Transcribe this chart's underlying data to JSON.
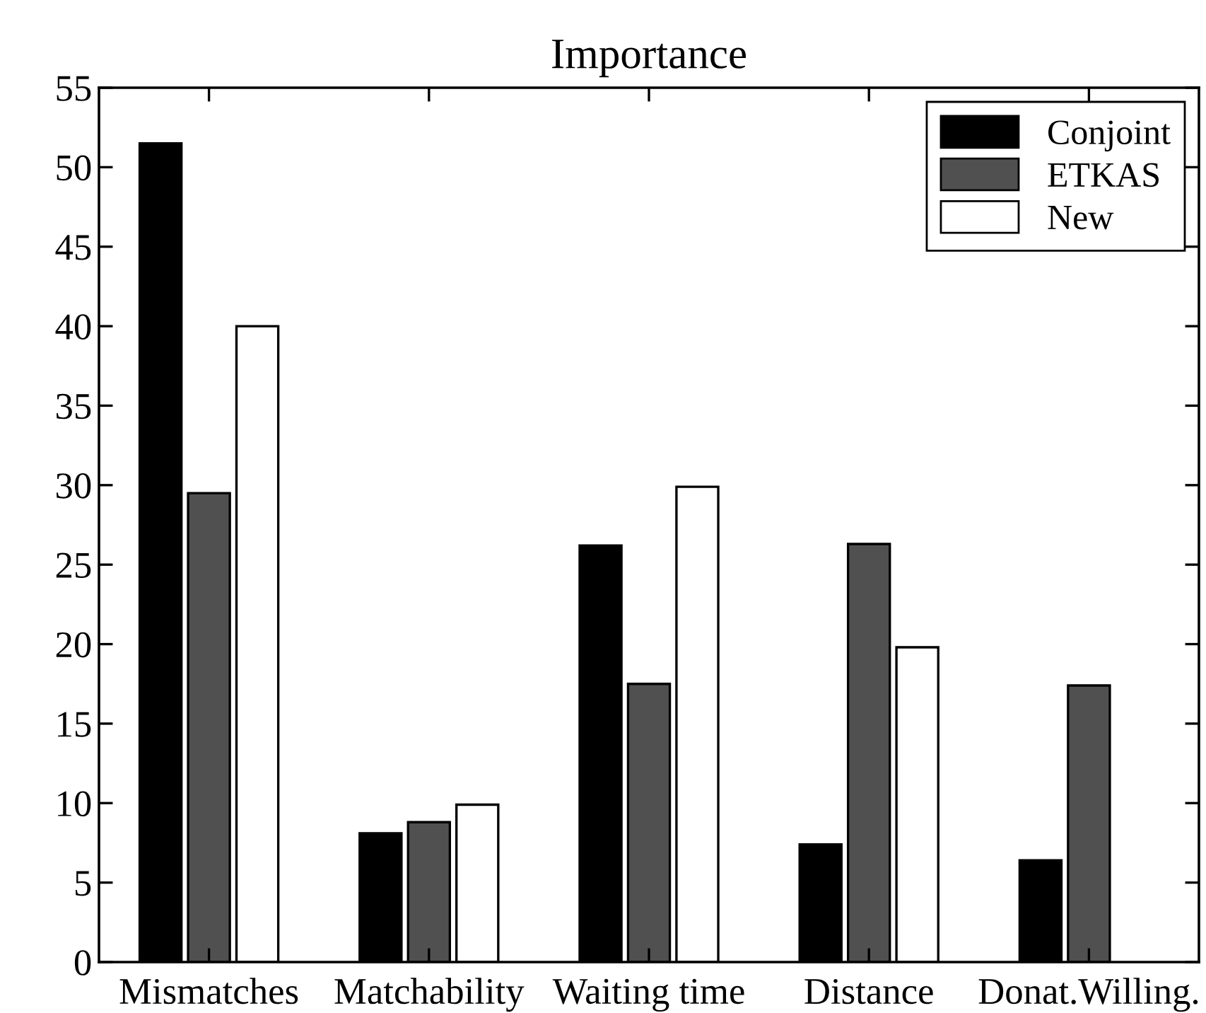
{
  "chart_data": {
    "type": "bar",
    "title": "Importance",
    "categories": [
      "Mismatches",
      "Matchability",
      "Waiting time",
      "Distance",
      "Donat.Willing."
    ],
    "series": [
      {
        "name": "Conjoint",
        "color": "#000000",
        "values": [
          51.5,
          8.1,
          26.2,
          7.4,
          6.4
        ]
      },
      {
        "name": "ETKAS",
        "color": "#505050",
        "values": [
          29.5,
          8.8,
          17.5,
          26.3,
          17.4
        ]
      },
      {
        "name": "New",
        "color": "#ffffff",
        "values": [
          40,
          9.9,
          29.9,
          19.8,
          null
        ]
      }
    ],
    "ylim": [
      0,
      55
    ],
    "yticks": [
      0,
      5,
      10,
      15,
      20,
      25,
      30,
      35,
      40,
      45,
      50,
      55
    ],
    "grid": false,
    "legend": "top right"
  }
}
